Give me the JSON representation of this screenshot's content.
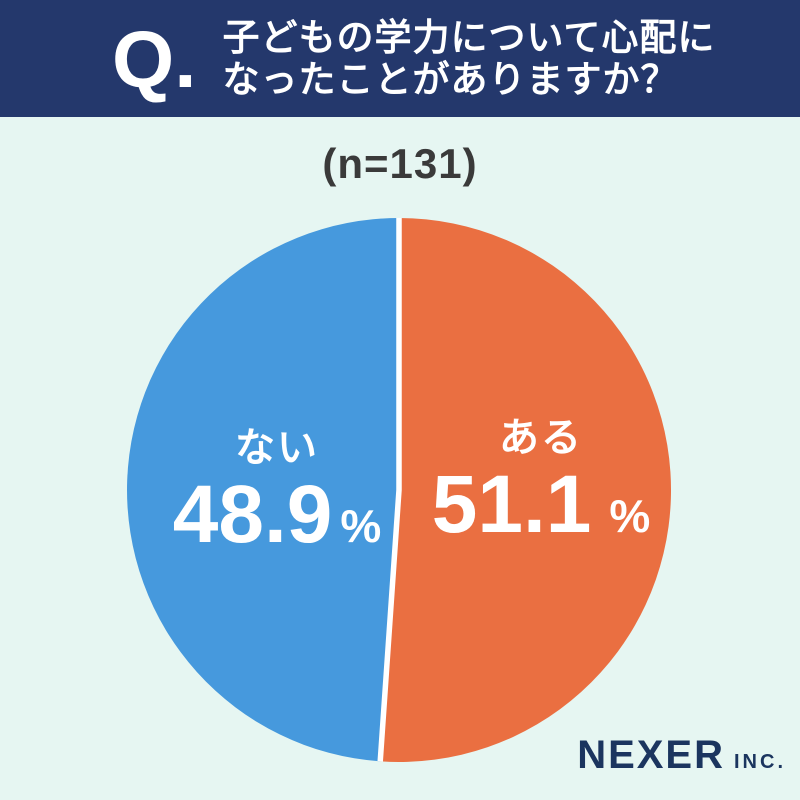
{
  "header": {
    "q_label": "Q.",
    "question_line1": "子どもの学力について心配に",
    "question_line2": "なったことがありますか？"
  },
  "chart_data": {
    "type": "pie",
    "title": "子どもの学力について心配になったことがありますか？",
    "n_label": "(n=131)",
    "unit": "%",
    "direction": "clockwise",
    "start_angle_deg": 0,
    "divider_color": "#FFFFFF",
    "background_color": "#E6F6F2",
    "header_color": "#24386C",
    "text_color": "#FFFFFF",
    "slices": [
      {
        "label": "ある",
        "value": 51.1,
        "display_value": "51.1",
        "color": "#EA6F41"
      },
      {
        "label": "ない",
        "value": 48.9,
        "display_value": "48.9",
        "color": "#4699DD"
      }
    ]
  },
  "footer": {
    "logo_main": "NEXER",
    "logo_suffix": "INC."
  }
}
